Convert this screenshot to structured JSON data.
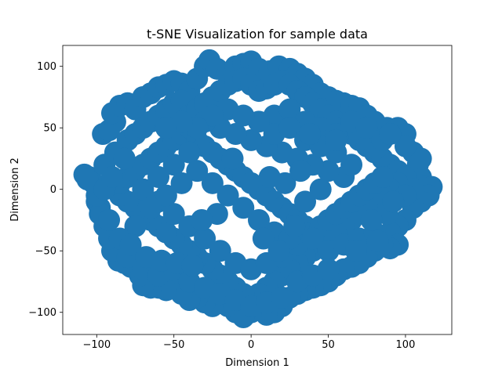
{
  "chart_data": {
    "type": "scatter",
    "title": "t-SNE Visualization for sample data",
    "xlabel": "Dimension 1",
    "ylabel": "Dimension 2",
    "xlim": [
      -122,
      130
    ],
    "ylim": [
      -118,
      117
    ],
    "xticks": [
      -100,
      -50,
      0,
      50,
      100
    ],
    "xtick_labels": [
      "−100",
      "−50",
      "0",
      "50",
      "100"
    ],
    "yticks": [
      -100,
      -50,
      0,
      50,
      100
    ],
    "ytick_labels": [
      "−100",
      "−50",
      "0",
      "50",
      "100"
    ],
    "grid": false,
    "legend": "none",
    "marker_color": "#1f77b4",
    "series": [
      {
        "points": [
          [
            -105,
            10
          ],
          [
            -108,
            12
          ],
          [
            -102,
            5
          ],
          [
            -100,
            -10
          ],
          [
            -98,
            -15
          ],
          [
            -95,
            20
          ],
          [
            -96,
            45
          ],
          [
            -92,
            48
          ],
          [
            -88,
            55
          ],
          [
            -90,
            62
          ],
          [
            -85,
            68
          ],
          [
            -80,
            70
          ],
          [
            -75,
            65
          ],
          [
            -70,
            75
          ],
          [
            -65,
            78
          ],
          [
            -60,
            83
          ],
          [
            -55,
            85
          ],
          [
            -50,
            88
          ],
          [
            -45,
            86
          ],
          [
            -40,
            80
          ],
          [
            -35,
            90
          ],
          [
            -30,
            100
          ],
          [
            -27,
            105
          ],
          [
            -22,
            98
          ],
          [
            -15,
            95
          ],
          [
            -10,
            100
          ],
          [
            -5,
            102
          ],
          [
            0,
            104
          ],
          [
            5,
            98
          ],
          [
            12,
            96
          ],
          [
            18,
            100
          ],
          [
            25,
            98
          ],
          [
            30,
            94
          ],
          [
            35,
            90
          ],
          [
            40,
            85
          ],
          [
            45,
            78
          ],
          [
            50,
            75
          ],
          [
            55,
            72
          ],
          [
            60,
            70
          ],
          [
            65,
            68
          ],
          [
            70,
            66
          ],
          [
            75,
            60
          ],
          [
            80,
            55
          ],
          [
            88,
            50
          ],
          [
            95,
            50
          ],
          [
            100,
            45
          ],
          [
            105,
            30
          ],
          [
            108,
            20
          ],
          [
            110,
            10
          ],
          [
            113,
            3
          ],
          [
            117,
            2
          ],
          [
            115,
            -5
          ],
          [
            110,
            -10
          ],
          [
            105,
            -15
          ],
          [
            100,
            -25
          ],
          [
            95,
            -30
          ],
          [
            90,
            -35
          ],
          [
            95,
            -45
          ],
          [
            90,
            -48
          ],
          [
            80,
            -50
          ],
          [
            75,
            -55
          ],
          [
            70,
            -60
          ],
          [
            65,
            -63
          ],
          [
            60,
            -65
          ],
          [
            55,
            -70
          ],
          [
            50,
            -75
          ],
          [
            45,
            -78
          ],
          [
            40,
            -80
          ],
          [
            35,
            -82
          ],
          [
            30,
            -85
          ],
          [
            25,
            -88
          ],
          [
            20,
            -95
          ],
          [
            15,
            -100
          ],
          [
            10,
            -102
          ],
          [
            5,
            -98
          ],
          [
            0,
            -100
          ],
          [
            -5,
            -104
          ],
          [
            -10,
            -100
          ],
          [
            -15,
            -95
          ],
          [
            -20,
            -92
          ],
          [
            -25,
            -95
          ],
          [
            -30,
            -92
          ],
          [
            -35,
            -88
          ],
          [
            -40,
            -90
          ],
          [
            -45,
            -85
          ],
          [
            -50,
            -80
          ],
          [
            -55,
            -82
          ],
          [
            -60,
            -80
          ],
          [
            -65,
            -80
          ],
          [
            -70,
            -78
          ],
          [
            -72,
            -70
          ],
          [
            -78,
            -63
          ],
          [
            -82,
            -60
          ],
          [
            -86,
            -58
          ],
          [
            -90,
            -50
          ],
          [
            -92,
            -40
          ],
          [
            -95,
            -30
          ],
          [
            -98,
            -20
          ],
          [
            -100,
            -5
          ],
          [
            -106,
            8
          ],
          [
            -80,
            40
          ],
          [
            -75,
            45
          ],
          [
            -70,
            50
          ],
          [
            -65,
            55
          ],
          [
            -60,
            60
          ],
          [
            -55,
            65
          ],
          [
            -50,
            70
          ],
          [
            -45,
            72
          ],
          [
            -40,
            60
          ],
          [
            -35,
            65
          ],
          [
            -30,
            70
          ],
          [
            -25,
            75
          ],
          [
            -20,
            80
          ],
          [
            -15,
            85
          ],
          [
            -10,
            88
          ],
          [
            -5,
            90
          ],
          [
            0,
            85
          ],
          [
            5,
            80
          ],
          [
            10,
            82
          ],
          [
            15,
            85
          ],
          [
            20,
            88
          ],
          [
            25,
            85
          ],
          [
            30,
            80
          ],
          [
            35,
            75
          ],
          [
            40,
            70
          ],
          [
            45,
            65
          ],
          [
            50,
            60
          ],
          [
            55,
            55
          ],
          [
            60,
            50
          ],
          [
            65,
            45
          ],
          [
            70,
            40
          ],
          [
            75,
            35
          ],
          [
            80,
            30
          ],
          [
            85,
            25
          ],
          [
            90,
            20
          ],
          [
            95,
            15
          ],
          [
            100,
            10
          ],
          [
            95,
            5
          ],
          [
            90,
            0
          ],
          [
            85,
            -5
          ],
          [
            80,
            -10
          ],
          [
            75,
            -15
          ],
          [
            70,
            -20
          ],
          [
            65,
            -25
          ],
          [
            60,
            -30
          ],
          [
            55,
            -35
          ],
          [
            50,
            -40
          ],
          [
            45,
            -45
          ],
          [
            40,
            -50
          ],
          [
            35,
            -55
          ],
          [
            30,
            -60
          ],
          [
            25,
            -65
          ],
          [
            20,
            -70
          ],
          [
            15,
            -75
          ],
          [
            10,
            -80
          ],
          [
            5,
            -85
          ],
          [
            0,
            -88
          ],
          [
            -5,
            -85
          ],
          [
            -10,
            -80
          ],
          [
            -15,
            -75
          ],
          [
            -20,
            -70
          ],
          [
            -25,
            -65
          ],
          [
            -30,
            -60
          ],
          [
            -35,
            -55
          ],
          [
            -40,
            -50
          ],
          [
            -45,
            -45
          ],
          [
            -50,
            -40
          ],
          [
            -55,
            -35
          ],
          [
            -60,
            -30
          ],
          [
            -65,
            -25
          ],
          [
            -70,
            -20
          ],
          [
            -75,
            -15
          ],
          [
            -80,
            -10
          ],
          [
            -85,
            -5
          ],
          [
            -88,
            0
          ],
          [
            -85,
            5
          ],
          [
            -80,
            10
          ],
          [
            -75,
            15
          ],
          [
            -70,
            20
          ],
          [
            -65,
            25
          ],
          [
            -60,
            30
          ],
          [
            -55,
            35
          ],
          [
            -50,
            40
          ],
          [
            -45,
            45
          ],
          [
            -40,
            50
          ],
          [
            -35,
            40
          ],
          [
            -30,
            35
          ],
          [
            -25,
            30
          ],
          [
            -20,
            25
          ],
          [
            -15,
            20
          ],
          [
            -10,
            15
          ],
          [
            -5,
            10
          ],
          [
            0,
            5
          ],
          [
            5,
            0
          ],
          [
            10,
            -5
          ],
          [
            15,
            -10
          ],
          [
            20,
            -15
          ],
          [
            25,
            -20
          ],
          [
            30,
            -25
          ],
          [
            35,
            -30
          ],
          [
            40,
            -35
          ],
          [
            45,
            -30
          ],
          [
            50,
            -25
          ],
          [
            55,
            -20
          ],
          [
            60,
            -15
          ],
          [
            65,
            -10
          ],
          [
            70,
            -5
          ],
          [
            75,
            0
          ],
          [
            80,
            5
          ],
          [
            85,
            10
          ],
          [
            60,
            10
          ],
          [
            50,
            15
          ],
          [
            40,
            20
          ],
          [
            30,
            25
          ],
          [
            20,
            30
          ],
          [
            10,
            35
          ],
          [
            0,
            40
          ],
          [
            -10,
            45
          ],
          [
            -20,
            50
          ],
          [
            -30,
            55
          ],
          [
            -40,
            30
          ],
          [
            -50,
            20
          ],
          [
            -60,
            10
          ],
          [
            -70,
            0
          ],
          [
            -60,
            -10
          ],
          [
            -50,
            -20
          ],
          [
            -40,
            -30
          ],
          [
            -30,
            -40
          ],
          [
            -20,
            -50
          ],
          [
            -10,
            -60
          ],
          [
            0,
            -65
          ],
          [
            10,
            -60
          ],
          [
            20,
            -55
          ],
          [
            30,
            -45
          ],
          [
            40,
            -40
          ],
          [
            50,
            -50
          ],
          [
            60,
            -45
          ],
          [
            70,
            -40
          ],
          [
            80,
            -35
          ],
          [
            85,
            -45
          ],
          [
            -25,
            5
          ],
          [
            -15,
            -5
          ],
          [
            -5,
            -15
          ],
          [
            5,
            -25
          ],
          [
            15,
            -35
          ],
          [
            25,
            -40
          ],
          [
            35,
            -10
          ],
          [
            45,
            0
          ],
          [
            55,
            30
          ],
          [
            65,
            20
          ],
          [
            -35,
            15
          ],
          [
            -45,
            5
          ],
          [
            -55,
            -5
          ],
          [
            -65,
            -15
          ],
          [
            -75,
            -30
          ],
          [
            -85,
            -40
          ],
          [
            -80,
            -55
          ],
          [
            -70,
            -65
          ],
          [
            -60,
            -70
          ],
          [
            -50,
            -65
          ],
          [
            -40,
            -75
          ],
          [
            -30,
            -80
          ],
          [
            -20,
            -85
          ],
          [
            -10,
            -90
          ],
          [
            0,
            -95
          ],
          [
            10,
            -92
          ],
          [
            20,
            -88
          ],
          [
            30,
            -75
          ],
          [
            40,
            -70
          ],
          [
            50,
            -65
          ],
          [
            15,
            60
          ],
          [
            25,
            65
          ],
          [
            35,
            55
          ],
          [
            45,
            50
          ],
          [
            55,
            45
          ],
          [
            -15,
            65
          ],
          [
            -25,
            60
          ],
          [
            -35,
            50
          ],
          [
            -45,
            55
          ],
          [
            -55,
            50
          ],
          [
            5,
            55
          ],
          [
            -5,
            60
          ],
          [
            15,
            45
          ],
          [
            25,
            50
          ],
          [
            35,
            40
          ],
          [
            45,
            35
          ],
          [
            55,
            40
          ],
          [
            65,
            55
          ],
          [
            75,
            50
          ],
          [
            85,
            40
          ],
          [
            105,
            0
          ],
          [
            100,
            -5
          ],
          [
            110,
            25
          ],
          [
            100,
            35
          ],
          [
            90,
            45
          ],
          [
            88,
            -20
          ],
          [
            92,
            -10
          ],
          [
            78,
            -25
          ],
          [
            82,
            -42
          ],
          [
            68,
            -50
          ],
          [
            -95,
            0
          ],
          [
            -90,
            10
          ],
          [
            -92,
            -25
          ],
          [
            -88,
            30
          ],
          [
            -82,
            25
          ],
          [
            -78,
            -45
          ],
          [
            -68,
            -55
          ],
          [
            -58,
            -58
          ],
          [
            -48,
            -60
          ],
          [
            -38,
            -62
          ],
          [
            12,
            10
          ],
          [
            22,
            5
          ],
          [
            32,
            15
          ],
          [
            -12,
            25
          ],
          [
            -22,
            -20
          ],
          [
            -32,
            -25
          ],
          [
            8,
            -40
          ],
          [
            18,
            -50
          ],
          [
            28,
            -30
          ],
          [
            38,
            45
          ]
        ]
      }
    ]
  }
}
